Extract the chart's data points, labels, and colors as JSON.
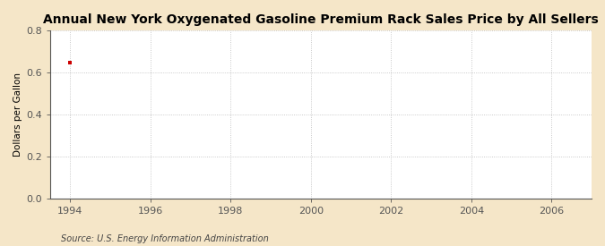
{
  "title": "Annual New York Oxygenated Gasoline Premium Rack Sales Price by All Sellers",
  "ylabel": "Dollars per Gallon",
  "source": "Source: U.S. Energy Information Administration",
  "xlim": [
    1993.5,
    2007
  ],
  "ylim": [
    0.0,
    0.8
  ],
  "xticks": [
    1994,
    1996,
    1998,
    2000,
    2002,
    2004,
    2006
  ],
  "yticks": [
    0.0,
    0.2,
    0.4,
    0.6,
    0.8
  ],
  "data_x": [
    1994
  ],
  "data_y": [
    0.648
  ],
  "point_color": "#cc0000",
  "figure_background": "#f5e6c8",
  "axes_background": "#ffffff",
  "grid_color": "#bbbbbb",
  "spine_color": "#555555",
  "title_fontsize": 10,
  "label_fontsize": 7.5,
  "tick_fontsize": 8,
  "source_fontsize": 7
}
